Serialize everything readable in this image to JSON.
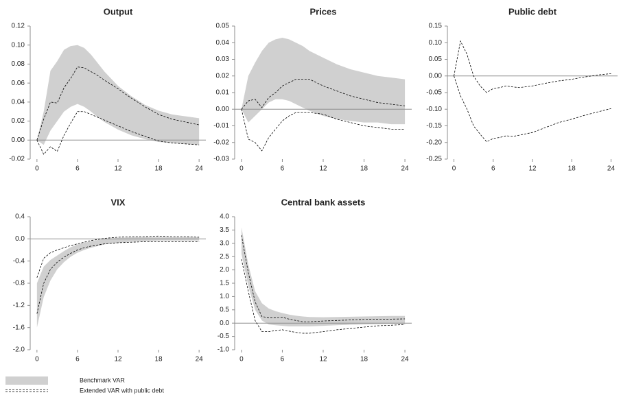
{
  "band_color": "#d0d0d0",
  "line_color": "#000000",
  "legend": {
    "band": "Benchmark VAR",
    "lines": "Extended VAR with public debt"
  },
  "chart_data": [
    {
      "type": "band",
      "title": "Output",
      "x": [
        0,
        1,
        2,
        3,
        4,
        5,
        6,
        7,
        8,
        9,
        10,
        12,
        14,
        16,
        18,
        20,
        22,
        24
      ],
      "band": {
        "upper": [
          0,
          0.03,
          0.073,
          0.083,
          0.095,
          0.099,
          0.1,
          0.097,
          0.09,
          0.081,
          0.072,
          0.057,
          0.046,
          0.037,
          0.031,
          0.027,
          0.025,
          0.023
        ],
        "lower": [
          0,
          -0.005,
          0.01,
          0.02,
          0.03,
          0.035,
          0.038,
          0.035,
          0.03,
          0.024,
          0.019,
          0.011,
          0.005,
          0.001,
          -0.002,
          -0.003,
          -0.004,
          -0.005
        ]
      },
      "lines": {
        "upper": [
          0,
          0.022,
          0.04,
          0.039,
          0.055,
          0.065,
          0.077,
          0.076,
          0.072,
          0.068,
          0.063,
          0.054,
          0.044,
          0.035,
          0.027,
          0.022,
          0.019,
          0.016
        ],
        "lower": [
          0,
          -0.015,
          -0.007,
          -0.012,
          0.005,
          0.018,
          0.03,
          0.03,
          0.027,
          0.024,
          0.021,
          0.015,
          0.009,
          0.004,
          -0.001,
          -0.003,
          -0.004,
          -0.005
        ]
      },
      "xlim": [
        -1,
        25
      ],
      "xticks": [
        0,
        6,
        12,
        18,
        24
      ],
      "ylim": [
        -0.02,
        0.12
      ],
      "yticks": [
        -0.02,
        {
          "value": 0,
          "label": "0.00"
        },
        0.02,
        0.04,
        0.06,
        0.08,
        {
          "value": 0.1,
          "label": "0.10"
        },
        0.12
      ]
    },
    {
      "type": "band",
      "title": "Prices",
      "x": [
        0,
        1,
        2,
        3,
        4,
        5,
        6,
        7,
        8,
        9,
        10,
        12,
        14,
        16,
        18,
        20,
        22,
        24
      ],
      "band": {
        "upper": [
          0,
          0.02,
          0.028,
          0.035,
          0.04,
          0.042,
          0.043,
          0.042,
          0.04,
          0.038,
          0.035,
          0.031,
          0.027,
          0.024,
          0.022,
          0.02,
          0.019,
          0.018
        ],
        "lower": [
          0,
          -0.008,
          -0.004,
          0,
          0.004,
          0.006,
          0.006,
          0.005,
          0.003,
          0.001,
          -0.001,
          -0.004,
          -0.006,
          -0.007,
          -0.008,
          -0.008,
          -0.009,
          -0.009
        ]
      },
      "lines": {
        "upper": [
          0,
          0.005,
          0.006,
          0.001,
          0.007,
          0.01,
          0.014,
          0.016,
          0.018,
          0.018,
          0.018,
          0.014,
          0.011,
          0.008,
          0.006,
          0.004,
          0.003,
          0.002
        ],
        "lower": [
          0,
          -0.018,
          -0.02,
          -0.025,
          -0.017,
          -0.012,
          -0.007,
          -0.004,
          -0.002,
          -0.002,
          -0.002,
          -0.003,
          -0.006,
          -0.008,
          -0.01,
          -0.011,
          -0.012,
          -0.012
        ]
      },
      "xlim": [
        -1,
        25
      ],
      "xticks": [
        0,
        6,
        12,
        18,
        24
      ],
      "ylim": [
        -0.03,
        0.05
      ],
      "yticks": [
        -0.03,
        -0.02,
        -0.01,
        {
          "value": 0,
          "label": "0.00"
        },
        0.01,
        0.02,
        0.03,
        0.04,
        0.05
      ]
    },
    {
      "type": "band",
      "title": "Public debt",
      "x": [
        0,
        1,
        2,
        3,
        4,
        5,
        6,
        7,
        8,
        9,
        10,
        12,
        14,
        16,
        18,
        20,
        22,
        24
      ],
      "lines": {
        "upper": [
          0,
          0.105,
          0.065,
          0,
          -0.03,
          -0.05,
          -0.038,
          -0.035,
          -0.03,
          -0.033,
          -0.035,
          -0.03,
          -0.022,
          -0.015,
          -0.01,
          -0.003,
          0.003,
          0.007
        ],
        "lower": [
          0,
          -0.06,
          -0.1,
          -0.15,
          -0.175,
          -0.198,
          -0.188,
          -0.185,
          -0.18,
          -0.182,
          -0.178,
          -0.17,
          -0.155,
          -0.14,
          -0.13,
          -0.118,
          -0.108,
          -0.098
        ]
      },
      "xlim": [
        -1,
        25
      ],
      "xticks": [
        0,
        6,
        12,
        18,
        24
      ],
      "ylim": [
        -0.25,
        0.15
      ],
      "yticks": [
        -0.25,
        {
          "value": -0.2,
          "label": "-0.20"
        },
        -0.15,
        {
          "value": -0.1,
          "label": "-0.10"
        },
        -0.05,
        {
          "value": 0,
          "label": "0.00"
        },
        0.05,
        {
          "value": 0.1,
          "label": "0.10"
        },
        0.15
      ]
    },
    {
      "type": "band",
      "title": "VIX",
      "x": [
        0,
        1,
        2,
        3,
        4,
        5,
        6,
        7,
        8,
        9,
        10,
        12,
        14,
        16,
        18,
        20,
        22,
        24
      ],
      "band": {
        "upper": [
          -0.8,
          -0.5,
          -0.38,
          -0.3,
          -0.22,
          -0.15,
          -0.1,
          -0.07,
          -0.04,
          -0.02,
          0,
          0.02,
          0.03,
          0.03,
          0.03,
          0.03,
          0.03,
          0.03
        ],
        "lower": [
          -1.6,
          -1.05,
          -0.75,
          -0.55,
          -0.42,
          -0.32,
          -0.25,
          -0.2,
          -0.16,
          -0.13,
          -0.1,
          -0.07,
          -0.05,
          -0.04,
          -0.03,
          -0.03,
          -0.03,
          -0.03
        ]
      },
      "lines": {
        "upper": [
          -0.7,
          -0.35,
          -0.25,
          -0.2,
          -0.16,
          -0.12,
          -0.09,
          -0.06,
          -0.03,
          -0.01,
          0.01,
          0.03,
          0.04,
          0.04,
          0.05,
          0.04,
          0.04,
          0.03
        ],
        "lower": [
          -1.35,
          -0.8,
          -0.55,
          -0.42,
          -0.33,
          -0.26,
          -0.2,
          -0.16,
          -0.13,
          -0.11,
          -0.09,
          -0.07,
          -0.06,
          -0.05,
          -0.05,
          -0.05,
          -0.05,
          -0.05
        ]
      },
      "xlim": [
        -1,
        25
      ],
      "xticks": [
        0,
        6,
        12,
        18,
        24
      ],
      "ylim": [
        -2,
        0.4
      ],
      "yticks": [
        {
          "value": -2,
          "label": "-2.0"
        },
        -1.6,
        -1.2,
        -0.8,
        -0.4,
        {
          "value": 0,
          "label": "0.0"
        },
        0.4
      ]
    },
    {
      "type": "band",
      "title": "Central bank assets",
      "x": [
        0,
        1,
        2,
        3,
        4,
        5,
        6,
        7,
        8,
        9,
        10,
        12,
        14,
        16,
        18,
        20,
        22,
        24
      ],
      "band": {
        "upper": [
          3.6,
          2.2,
          1.2,
          0.75,
          0.55,
          0.45,
          0.38,
          0.32,
          0.28,
          0.25,
          0.23,
          0.22,
          0.23,
          0.24,
          0.25,
          0.26,
          0.27,
          0.27
        ],
        "lower": [
          2.6,
          1.4,
          0.5,
          0.1,
          -0.05,
          -0.08,
          -0.1,
          -0.12,
          -0.12,
          -0.12,
          -0.12,
          -0.1,
          -0.08,
          -0.06,
          -0.05,
          -0.04,
          -0.03,
          -0.03
        ]
      },
      "lines": {
        "upper": [
          3.3,
          1.9,
          0.8,
          0.25,
          0.2,
          0.2,
          0.22,
          0.15,
          0.1,
          0.05,
          0.05,
          0.08,
          0.1,
          0.12,
          0.14,
          0.15,
          0.15,
          0.16
        ],
        "lower": [
          2.4,
          1.2,
          0.1,
          -0.32,
          -0.32,
          -0.28,
          -0.25,
          -0.3,
          -0.35,
          -0.38,
          -0.38,
          -0.32,
          -0.25,
          -0.2,
          -0.15,
          -0.1,
          -0.08,
          -0.05
        ]
      },
      "xlim": [
        -1,
        25
      ],
      "xticks": [
        0,
        6,
        12,
        18,
        24
      ],
      "ylim": [
        -1,
        4
      ],
      "yticks": [
        {
          "value": -1,
          "label": "-1.0"
        },
        -0.5,
        {
          "value": 0,
          "label": "0.0"
        },
        0.5,
        {
          "value": 1,
          "label": "1.0"
        },
        1.5,
        {
          "value": 2,
          "label": "2.0"
        },
        2.5,
        {
          "value": 3,
          "label": "3.0"
        },
        3.5,
        {
          "value": 4,
          "label": "4.0"
        }
      ]
    }
  ]
}
